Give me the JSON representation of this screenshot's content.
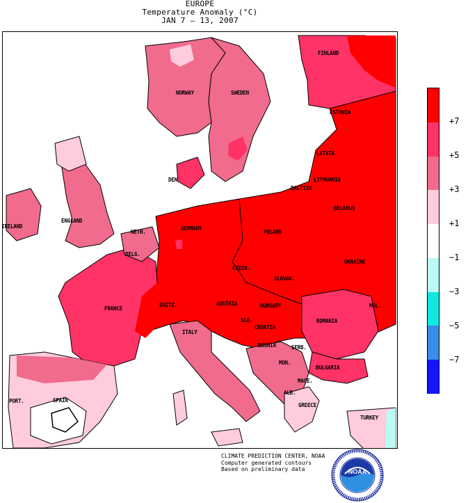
{
  "header": {
    "region": "EUROPE",
    "subtitle": "Temperature Anomaly (°C)",
    "date_range": "JAN 7 – 13, 2007"
  },
  "legend": {
    "labels": [
      "+7",
      "+5",
      "+3",
      "+1",
      "−1",
      "−3",
      "−5",
      "−7"
    ],
    "colors": [
      "#ff0000",
      "#ff3366",
      "#f06b8c",
      "#ffccdd",
      "#ffffff",
      "#bbfaf5",
      "#11e8e0",
      "#3a8ce6",
      "#1515ff"
    ]
  },
  "map": {
    "countries": {
      "finland": "FINLAND",
      "norway": "NORWAY",
      "sweden": "SWEDEN",
      "estonia": "ESTONIA",
      "latvia": "LATVIA",
      "lithuania": "LITHUANIA",
      "baltiin": "BALTIIN",
      "belarus": "BELARUS",
      "denmark": "DEN",
      "ireland": "IRELAND",
      "england": "ENGLAND",
      "netherlands": "NETH.",
      "belgium": "BELG.",
      "germany": "GERMANY",
      "poland": "POLAND",
      "ukraine": "UKRAINE",
      "czech": "CZECH.",
      "slovak": "SLOVAK.",
      "france": "FRANCE",
      "switzerland": "SWITZ.",
      "austria": "AUSTRIA",
      "hungary": "HUNGARY",
      "moldova": "MOL.",
      "slovenia": "SLO.",
      "croatia": "CROATIA",
      "romania": "ROMANIA",
      "italy": "ITALY",
      "bosnia": "BOSNIA",
      "serbia": "SERB.",
      "montenegro": "MON.",
      "bulgaria": "BULGARIA",
      "macedonia": "MACE.",
      "albania": "ALB.",
      "greece": "GREECE",
      "portugal": "PORT.",
      "spain": "SPAIN",
      "turkey": "TURKEY"
    }
  },
  "credit": {
    "line1": "CLIMATE PREDICTION CENTER, NOAA",
    "line2": "Computer generated contours",
    "line3": "Based on preliminary data"
  },
  "logo": {
    "text": "NOAA",
    "ring_text": "NATIONAL OCEANIC AND ATMOSPHERIC ADMINISTRATION · U.S. DEPARTMENT OF COMMERCE"
  }
}
